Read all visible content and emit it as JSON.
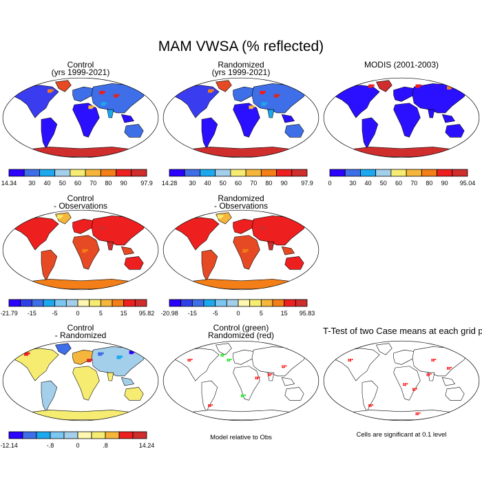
{
  "figure": {
    "title": "MAM VWSA (% reflected)"
  },
  "colors": {
    "land_outline": "#000000",
    "ocean": "#ffffff",
    "sig_control_green": "#00e000",
    "sig_randomized_red": "#ff0000"
  },
  "chart_data": [
    {
      "id": "control",
      "type": "heatmap",
      "title_lines": [
        "Control",
        "(yrs 1999-2021)"
      ],
      "map_fill": "mostly-blue",
      "colorbar": {
        "labels": [
          "14.34",
          "30",
          "40",
          "50",
          "60",
          "70",
          "80",
          "90",
          "97.9"
        ],
        "colors": [
          "#2b00ff",
          "#3e6fe8",
          "#1ca8ef",
          "#a3cfeb",
          "#f6ec72",
          "#f5b63b",
          "#f47e17",
          "#ee1f1f",
          "#d02d2d"
        ]
      }
    },
    {
      "id": "randomized",
      "type": "heatmap",
      "title_lines": [
        "Randomized",
        "(yrs 1999-2021)"
      ],
      "map_fill": "mostly-blue",
      "colorbar": {
        "labels": [
          "14.28",
          "30",
          "40",
          "50",
          "60",
          "70",
          "80",
          "90",
          "97.9"
        ],
        "colors": [
          "#2b00ff",
          "#3e6fe8",
          "#1ca8ef",
          "#a3cfeb",
          "#f6ec72",
          "#f5b63b",
          "#f47e17",
          "#ee1f1f",
          "#d02d2d"
        ]
      }
    },
    {
      "id": "modis",
      "type": "heatmap",
      "title_lines": [
        "MODIS (2001-2003)"
      ],
      "map_fill": "modis-blue",
      "colorbar": {
        "labels": [
          "0",
          "30",
          "40",
          "50",
          "60",
          "70",
          "80",
          "90",
          "95.04"
        ],
        "colors": [
          "#2b00ff",
          "#3e6fe8",
          "#1ca8ef",
          "#a3cfeb",
          "#f6ec72",
          "#f5b63b",
          "#f47e17",
          "#ee1f1f",
          "#d02d2d"
        ]
      }
    },
    {
      "id": "control-obs",
      "type": "heatmap",
      "title_lines": [
        "Control",
        "- Observations"
      ],
      "map_fill": "mostly-red",
      "colorbar": {
        "labels": [
          "-21.79",
          "-15",
          "-5",
          "0",
          "5",
          "15",
          "95.82"
        ],
        "label_cells": [
          0,
          2,
          4,
          6,
          8,
          10,
          12
        ],
        "colors": [
          "#2b00ff",
          "#3040e8",
          "#3e6fe8",
          "#1ca8ef",
          "#7cc6f2",
          "#a3cfeb",
          "#fff6b0",
          "#f6ec72",
          "#f5b63b",
          "#f47e17",
          "#ee1f1f",
          "#d02d2d"
        ]
      }
    },
    {
      "id": "randomized-obs",
      "type": "heatmap",
      "title_lines": [
        "Randomized",
        "- Observations"
      ],
      "map_fill": "mostly-red",
      "colorbar": {
        "labels": [
          "-20.98",
          "-15",
          "-5",
          "0",
          "5",
          "15",
          "95.83"
        ],
        "label_cells": [
          0,
          2,
          4,
          6,
          8,
          10,
          12
        ],
        "colors": [
          "#2b00ff",
          "#3040e8",
          "#3e6fe8",
          "#1ca8ef",
          "#7cc6f2",
          "#a3cfeb",
          "#fff6b0",
          "#f6ec72",
          "#f5b63b",
          "#f47e17",
          "#ee1f1f",
          "#d02d2d"
        ]
      }
    },
    {
      "id": "control-randomized",
      "type": "heatmap",
      "title_lines": [
        "Control",
        "- Randomized"
      ],
      "map_fill": "mostly-pale",
      "colorbar": {
        "labels": [
          "-12.14",
          "-.8",
          "0",
          ".8",
          "14.24"
        ],
        "label_cells": [
          0,
          3,
          5,
          7,
          10
        ],
        "colors": [
          "#2b00ff",
          "#3e6fe8",
          "#1ca8ef",
          "#7cc6f2",
          "#a3cfeb",
          "#fff6b0",
          "#f6ec72",
          "#f5b63b",
          "#ee1f1f",
          "#d02d2d"
        ]
      }
    },
    {
      "id": "model-vs-obs",
      "type": "heatmap",
      "title_lines": [
        "Control (green)",
        "Randomized (red)"
      ],
      "map_fill": "sig-green-red",
      "note": "Model relative to Obs"
    },
    {
      "id": "ttest",
      "type": "heatmap",
      "title_lines": [
        "T-Test of two Case means at each grid point"
      ],
      "map_fill": "sig-red",
      "note": "Cells are significant at 0.1 level"
    }
  ]
}
